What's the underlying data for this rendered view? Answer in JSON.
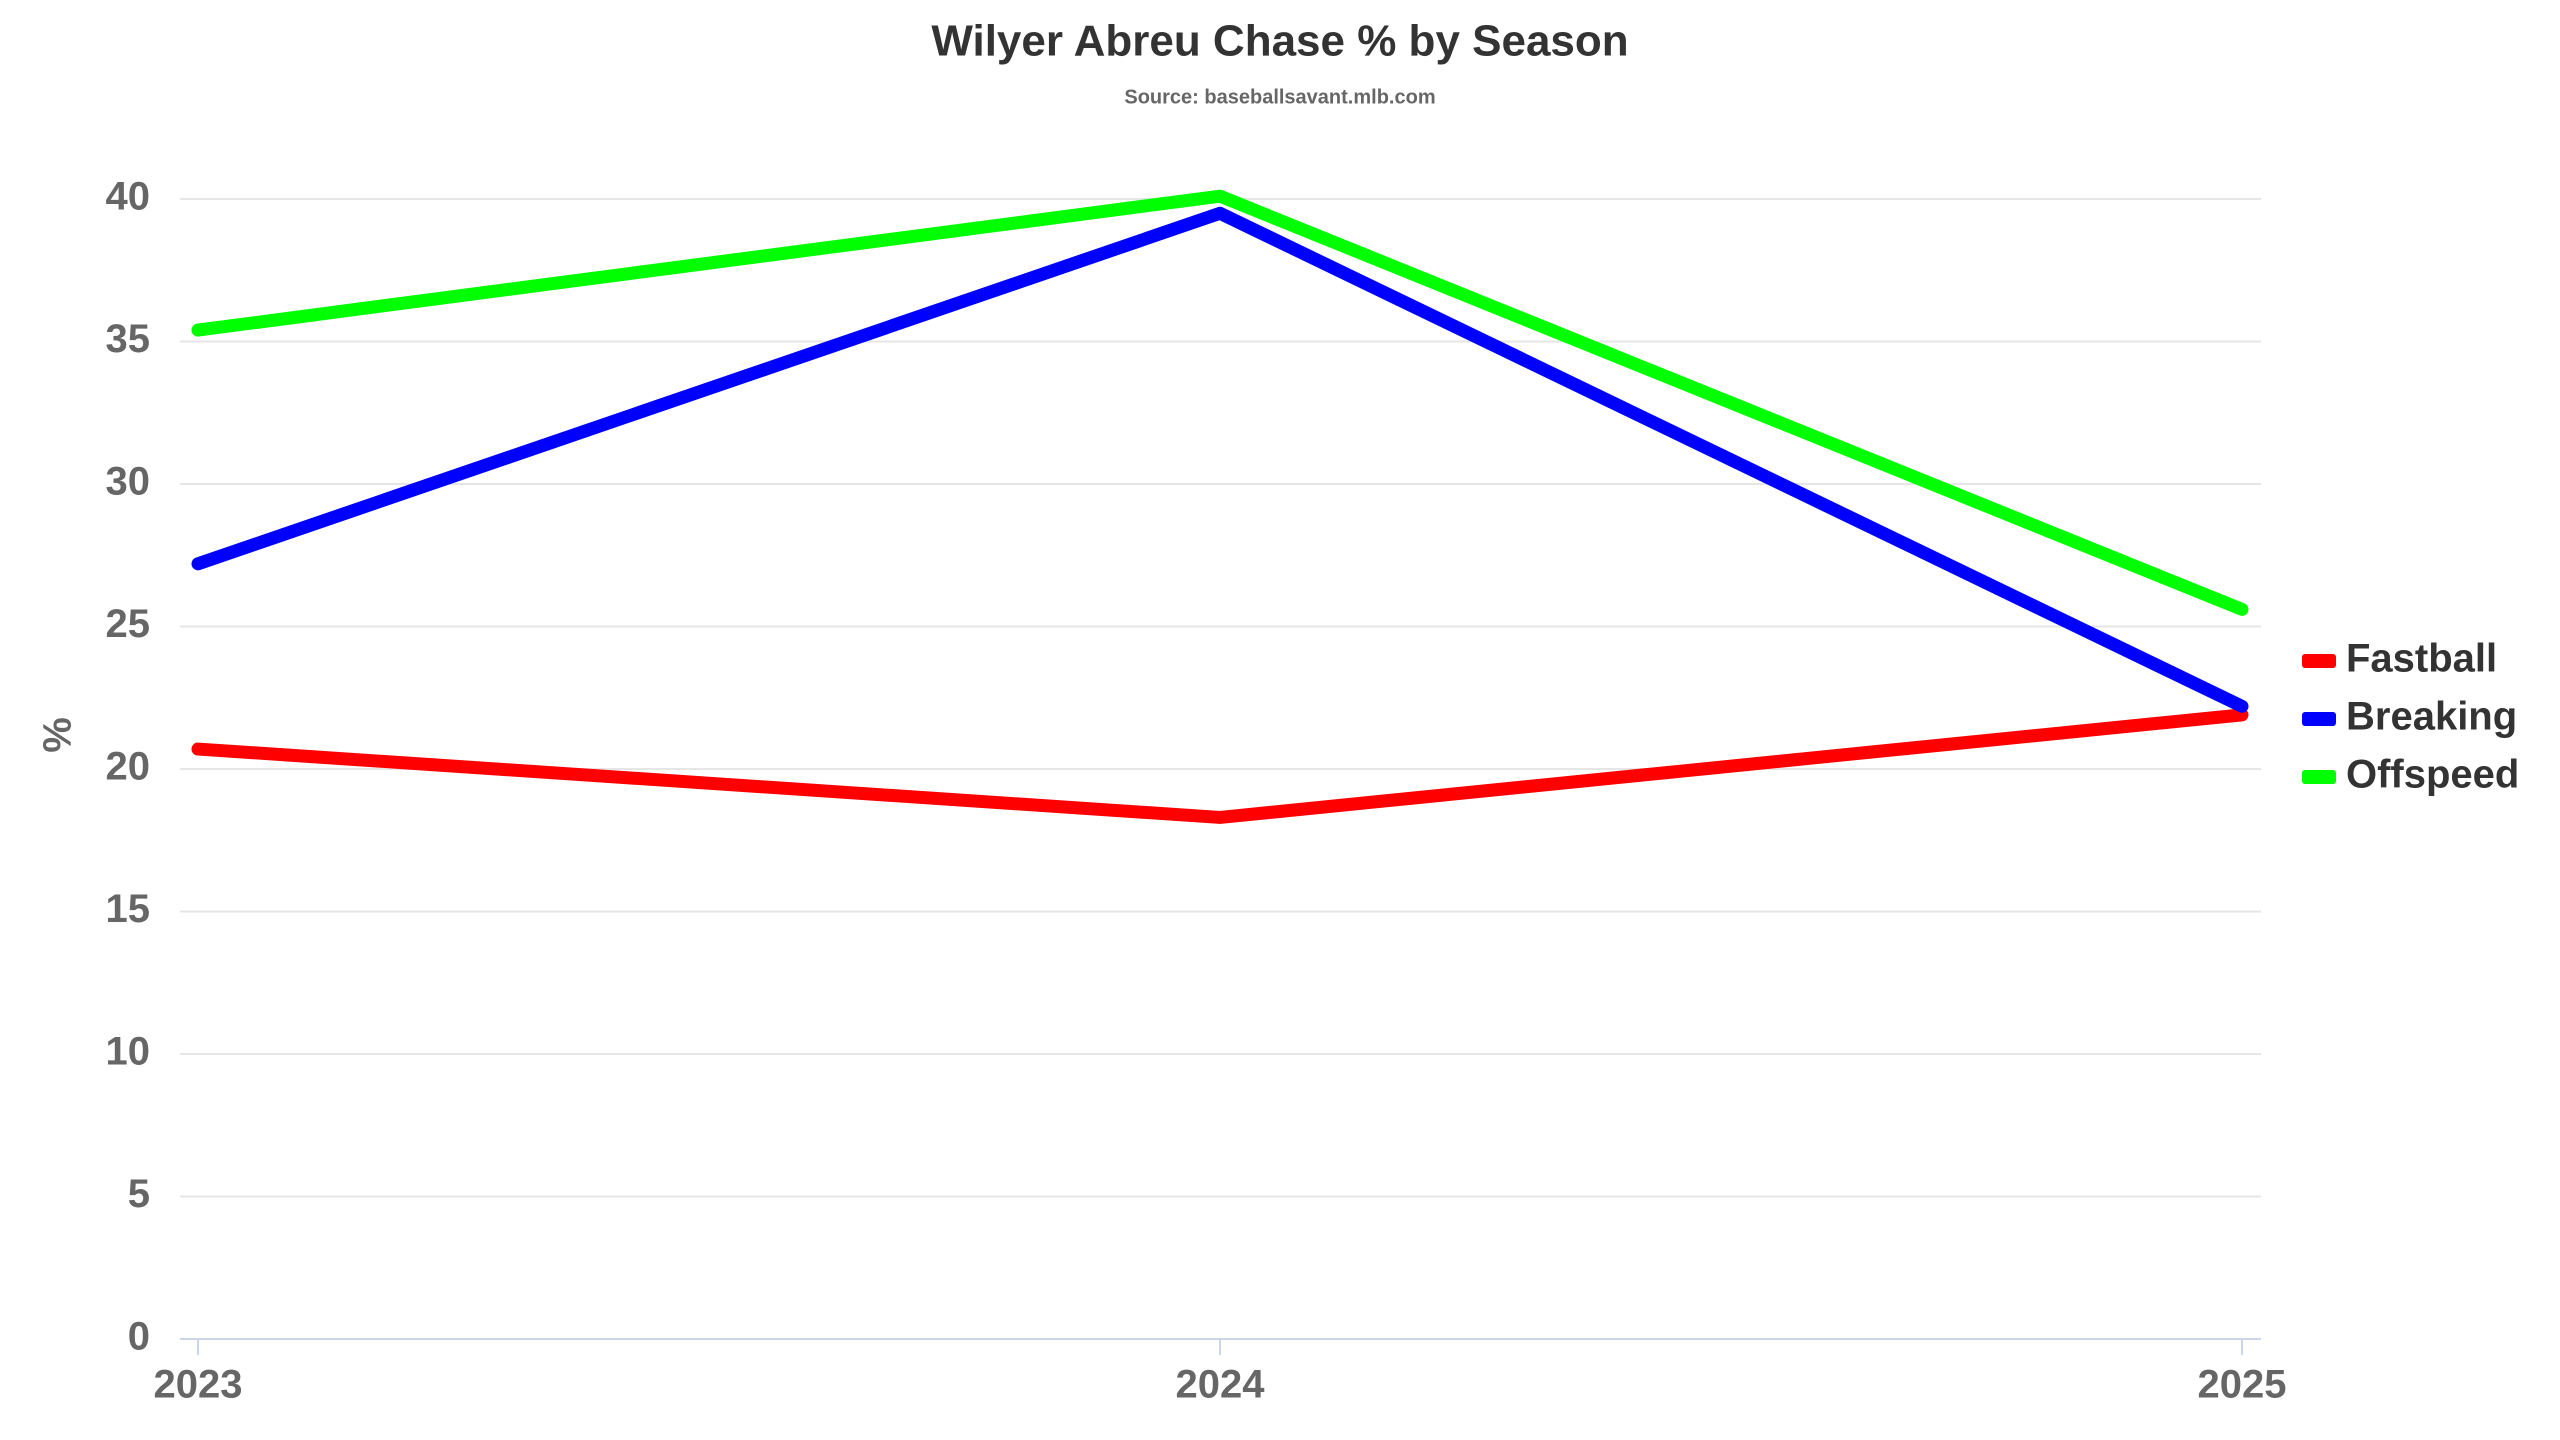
{
  "chart_data": {
    "type": "line",
    "title": "Wilyer Abreu Chase % by Season",
    "subtitle": "Source: baseballsavant.mlb.com",
    "y_label": "%",
    "x": [
      2023,
      2024,
      2025
    ],
    "xlim": [
      2023,
      2025
    ],
    "xticks": [
      2023,
      2024,
      2025
    ],
    "ylim": [
      0,
      40
    ],
    "yticks": [
      0,
      5,
      10,
      15,
      20,
      25,
      30,
      35,
      40
    ],
    "grid": true,
    "legend": "right",
    "series": [
      {
        "name": "Fastball",
        "color": "#ff0000",
        "values": [
          20.7,
          18.3,
          21.9
        ]
      },
      {
        "name": "Breaking",
        "color": "#0000ff",
        "values": [
          27.2,
          39.5,
          22.2
        ]
      },
      {
        "name": "Offspeed",
        "color": "#00ff00",
        "values": [
          35.4,
          40.1,
          25.6
        ]
      }
    ]
  }
}
